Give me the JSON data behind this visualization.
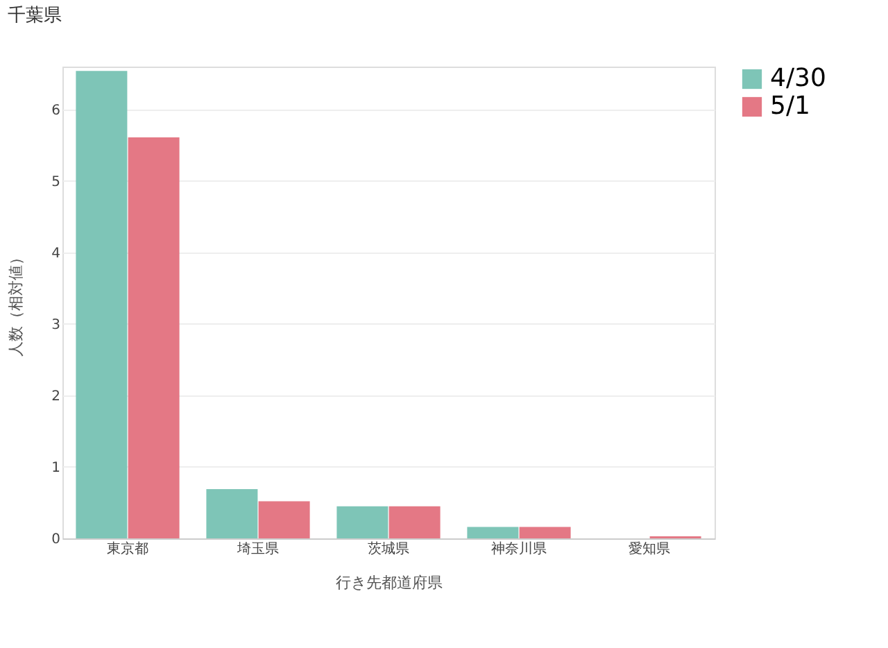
{
  "chart_data": {
    "type": "bar",
    "title": "千葉県",
    "xlabel": "行き先都道府県",
    "ylabel": "人数（相対値）",
    "categories": [
      "東京都",
      "埼玉県",
      "茨城県",
      "神奈川県",
      "愛知県"
    ],
    "series": [
      {
        "name": "4/30",
        "color": "#7ec5b7",
        "values": [
          6.54,
          0.69,
          0.45,
          0.16,
          0
        ]
      },
      {
        "name": "5/1",
        "color": "#e47885",
        "values": [
          5.61,
          0.52,
          0.45,
          0.16,
          0.03
        ]
      }
    ],
    "ylim": [
      0,
      6.6
    ],
    "yticks": [
      0,
      1,
      2,
      3,
      4,
      5,
      6
    ],
    "grid": "y",
    "legend": "top right"
  }
}
